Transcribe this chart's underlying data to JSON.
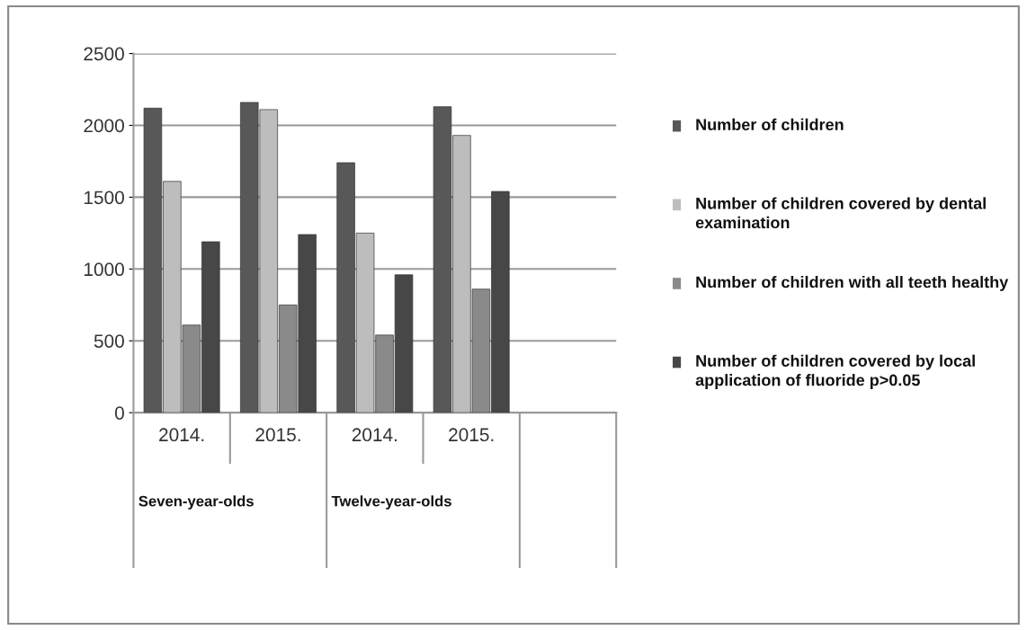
{
  "chart_data": {
    "type": "bar",
    "categories": [
      "2014.",
      "2015.",
      "2014.",
      "2015."
    ],
    "series": [
      {
        "name": "Number of children",
        "color": "#585858",
        "values": [
          2120,
          2160,
          1740,
          2130
        ]
      },
      {
        "name": "Number of children covered by dental examination",
        "color": "#bdbdbd",
        "values": [
          1610,
          2110,
          1250,
          1930
        ]
      },
      {
        "name": "Number of children with all teeth healthy",
        "color": "#8a8a8a",
        "values": [
          610,
          750,
          540,
          860
        ]
      },
      {
        "name": "Number of children covered by local application of fluoride p>0.05",
        "color": "#474747",
        "values": [
          1190,
          1240,
          960,
          1540
        ]
      }
    ],
    "annotations": [
      "Seven-year-olds",
      "Twelve-year-olds"
    ],
    "ylim": [
      0,
      2500
    ],
    "yticks": [
      0,
      500,
      1000,
      1500,
      2000,
      2500
    ],
    "grid": "y",
    "legend": "right"
  }
}
